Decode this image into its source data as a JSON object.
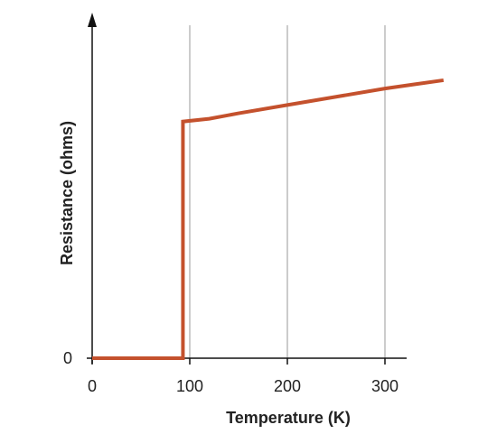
{
  "chart_data": {
    "type": "line",
    "title": "",
    "xlabel": "Temperature (K)",
    "ylabel": "Resistance (ohms)",
    "xlim": [
      0,
      360
    ],
    "x_ticks": [
      {
        "value": 0,
        "label": "0"
      },
      {
        "value": 100,
        "label": "100"
      },
      {
        "value": 200,
        "label": "200"
      },
      {
        "value": 300,
        "label": "300"
      }
    ],
    "y_ticks": [
      {
        "value": 0,
        "label": "0"
      }
    ],
    "ylim": [
      0,
      1.1
    ],
    "grid": {
      "vertical": true,
      "horizontal": false
    },
    "legend": "none",
    "series": [
      {
        "color": "#c4512d",
        "points": [
          [
            0,
            0
          ],
          [
            93,
            0
          ],
          [
            93,
            0.86
          ],
          [
            120,
            0.87
          ],
          [
            150,
            0.89
          ],
          [
            200,
            0.92
          ],
          [
            250,
            0.95
          ],
          [
            300,
            0.98
          ],
          [
            330,
            0.995
          ],
          [
            360,
            1.01
          ]
        ]
      }
    ]
  },
  "colors": {
    "axis": "#111111",
    "grid": "#999999",
    "line": "#c4512d"
  }
}
